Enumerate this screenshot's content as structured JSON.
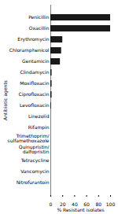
{
  "chart_data": {
    "type": "bar",
    "orientation": "horizontal",
    "categories": [
      "Penicillin",
      "Oxacillin",
      "Erythromycin",
      "Chloramphenicol",
      "Gentamicin",
      "Clindamycin",
      "Moxifloxacin",
      "Ciprofloxacin",
      "Levofloxacin",
      "Linezolid",
      "Rifampin",
      "Trimethoprim/\nsulfamethoxazole",
      "Quinupristin/\ndalfopristin",
      "Tetracycline",
      "Vancomycin",
      "Nitrofurantoin"
    ],
    "values": [
      100,
      100,
      20,
      18,
      16,
      2,
      2,
      2,
      1,
      0,
      0,
      0,
      0,
      0,
      0,
      0
    ],
    "color": "#1a1a1a",
    "xlabel": "% Resistant isolates",
    "ylabel": "Antibiotic agents",
    "xlim": [
      0,
      100
    ],
    "xticks": [
      0,
      20,
      40,
      60,
      80,
      100
    ],
    "grid": false
  }
}
